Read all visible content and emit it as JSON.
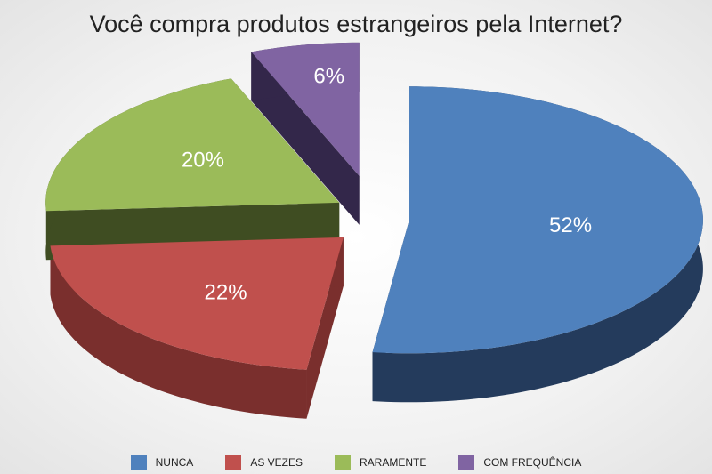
{
  "chart_data": {
    "type": "pie",
    "title": "Você compra produtos estrangeiros pela Internet?",
    "categories": [
      "NUNCA",
      "AS VEZES",
      "RARAMENTE",
      "COM FREQUÊNCIA"
    ],
    "values": [
      52,
      22,
      20,
      6
    ],
    "labels": [
      "52%",
      "22%",
      "20%",
      "6%"
    ],
    "colors": [
      "#4f81bd",
      "#c0504d",
      "#9bbb59",
      "#8064a2"
    ],
    "side_colors": [
      "#243b5c",
      "#7a2f2d",
      "#3f4d22",
      "#33274a"
    ],
    "legend_position": "bottom",
    "style": "3d-exploded"
  }
}
